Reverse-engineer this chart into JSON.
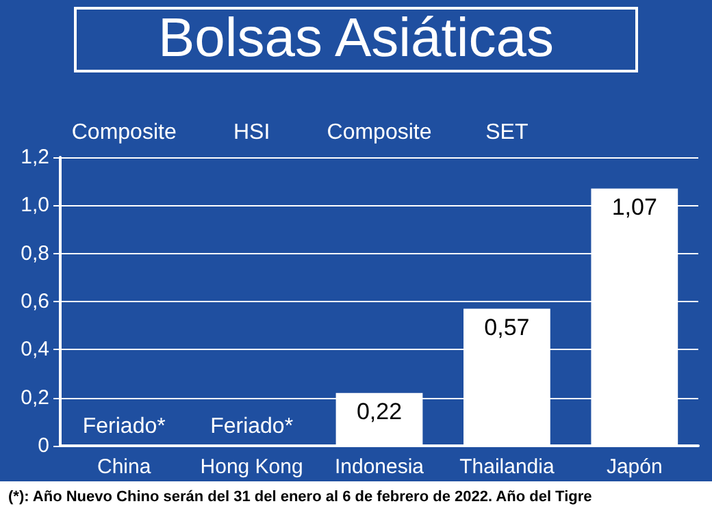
{
  "chart_data": {
    "type": "bar",
    "title": "Bolsas Asiáticas",
    "categories": [
      "China",
      "Hong Kong",
      "Indonesia",
      "Thailandia",
      "Japón"
    ],
    "values": [
      null,
      null,
      0.22,
      0.57,
      1.07
    ],
    "value_labels": [
      "Feriado*",
      "Feriado*",
      "0,22",
      "0,57",
      "1,07"
    ],
    "color": "#ffffff",
    "ylim": [
      0,
      1.2
    ],
    "yticks": [
      0,
      {
        "value": 0.2,
        "label": "0,2"
      },
      {
        "value": 0.4,
        "label": "0,4"
      },
      {
        "value": 0.6,
        "label": "0,6"
      },
      {
        "value": 0.8,
        "label": "0,8"
      },
      {
        "value": 1.0,
        "label": "1,0"
      },
      {
        "value": 1.2,
        "label": "1,2"
      }
    ],
    "grid": "y",
    "annotations": [
      "Composite",
      "HSI",
      "Composite",
      "SET",
      "(*): Año Nuevo Chino serán del 31 del enero al 6 de febrero de 2022. Año del Tigre"
    ]
  }
}
